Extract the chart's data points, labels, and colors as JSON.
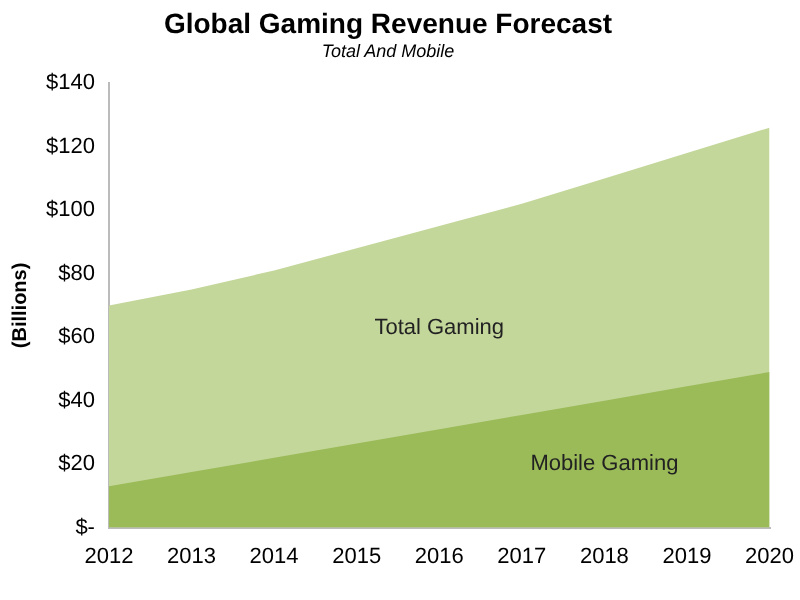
{
  "chart_data": {
    "type": "area",
    "title": "Global Gaming Revenue Forecast",
    "subtitle": "Total And Mobile",
    "ylabel": "(Billions)",
    "categories": [
      "2012",
      "2013",
      "2014",
      "2015",
      "2016",
      "2017",
      "2018",
      "2019",
      "2020"
    ],
    "series": [
      {
        "name": "Total Gaming",
        "color": "#c4d79b",
        "values": [
          70,
          75,
          81,
          88,
          95,
          102,
          110,
          118,
          126
        ]
      },
      {
        "name": "Mobile Gaming",
        "color": "#9bbb59",
        "values": [
          13,
          17.5,
          22,
          26.5,
          31,
          35.5,
          40,
          44.5,
          49
        ]
      }
    ],
    "ylim": [
      0,
      140
    ],
    "yticks": [
      {
        "value": 0,
        "label": "$-"
      },
      {
        "value": 20,
        "label": "$20"
      },
      {
        "value": 40,
        "label": "$40"
      },
      {
        "value": 60,
        "label": "$60"
      },
      {
        "value": 80,
        "label": "$80"
      },
      {
        "value": 100,
        "label": "$100"
      },
      {
        "value": 120,
        "label": "$120"
      },
      {
        "value": 140,
        "label": "$140"
      }
    ],
    "grid": false,
    "legend": false
  }
}
